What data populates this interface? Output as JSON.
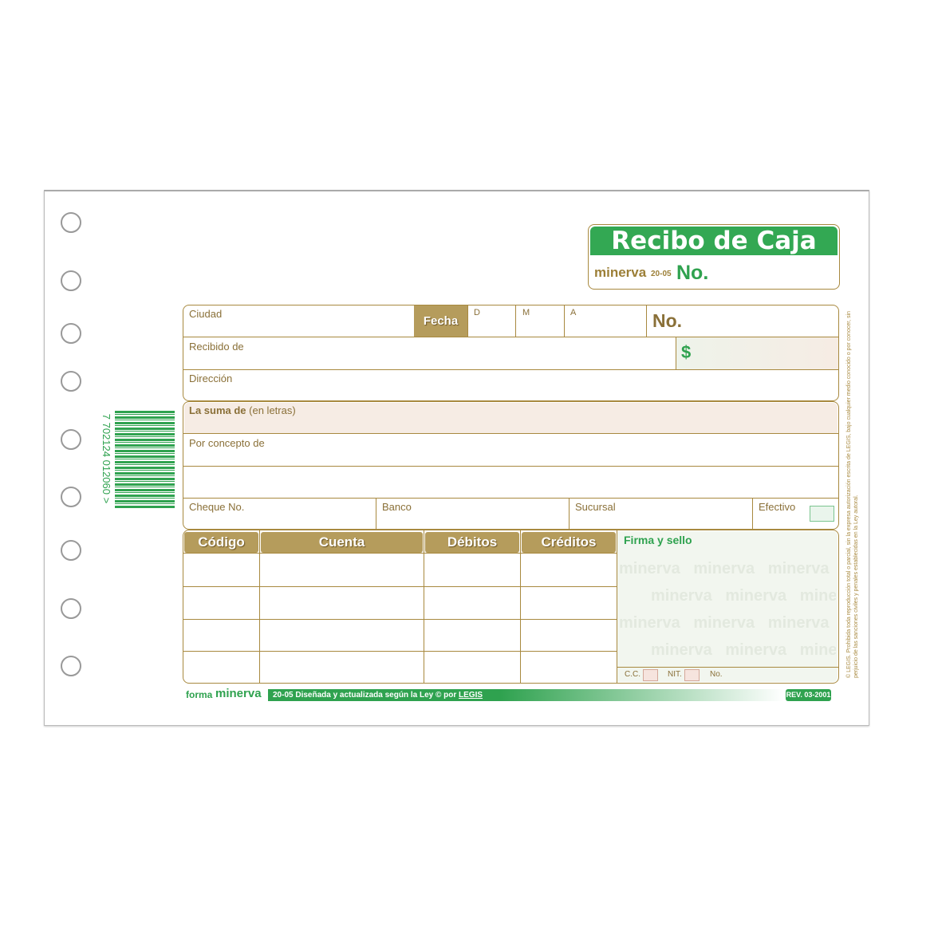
{
  "header": {
    "title": "Recibo de Caja",
    "brand": "minerva",
    "form_code": "20-05",
    "number_label": "No."
  },
  "fields": {
    "ciudad": "Ciudad",
    "fecha": "Fecha",
    "d": "D",
    "m": "M",
    "a": "A",
    "number_label": "No.",
    "recibido_de": "Recibido de",
    "currency_symbol": "$",
    "direccion": "Dirección",
    "suma_bold": "La suma de",
    "suma_rest": "(en letras)",
    "concepto": "Por concepto de",
    "cheque": "Cheque No.",
    "banco": "Banco",
    "sucursal": "Sucursal",
    "efectivo": "Efectivo"
  },
  "table": {
    "headers": [
      "Código",
      "Cuenta",
      "Débitos",
      "Créditos"
    ],
    "rows": 4
  },
  "signature": {
    "label": "Firma y sello",
    "cc": "C.C.",
    "nit": "NIT.",
    "no": "No.",
    "watermark": "minerva"
  },
  "barcode": {
    "digits": "7 702124 012060 >"
  },
  "footer": {
    "forma": "forma",
    "brand": "minerva",
    "text": "20-05 Diseñada y actualizada según la Ley © por",
    "legis": "LEGIS",
    "rev": "REV. 03-2001"
  },
  "legal": "© LEGIS. Prohibida toda reproducción total o parcial, sin la expresa autorización escrita de LEGIS, bajo cualquier medio conocido o por conocer, sin perjuicio de las sanciones civiles y penales establecidas en la Ley autoral.",
  "colors": {
    "green": "#2fa24f",
    "gold": "#a8893f",
    "pink": "#f6ece4"
  }
}
